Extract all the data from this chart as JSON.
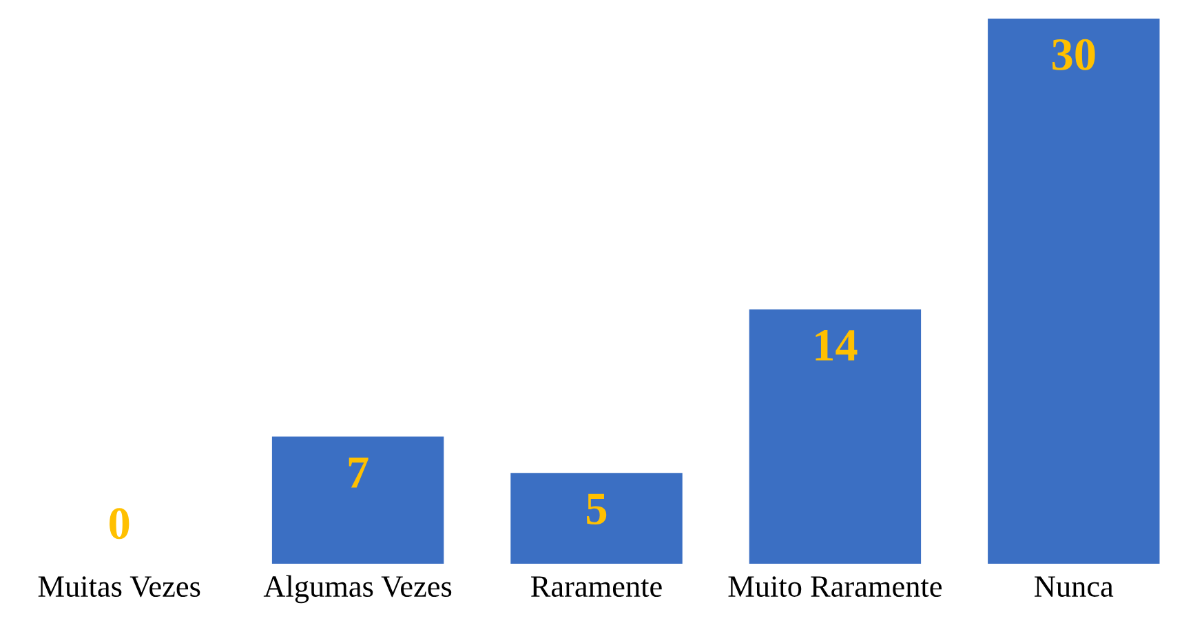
{
  "chart_data": {
    "type": "bar",
    "categories": [
      "Muitas Vezes",
      "Algumas Vezes",
      "Raramente",
      "Muito Raramente",
      "Nunca"
    ],
    "values": [
      0,
      7,
      5,
      14,
      30
    ],
    "color": "#3b6fc3",
    "data_labels": true,
    "grid": false,
    "legend": false
  }
}
